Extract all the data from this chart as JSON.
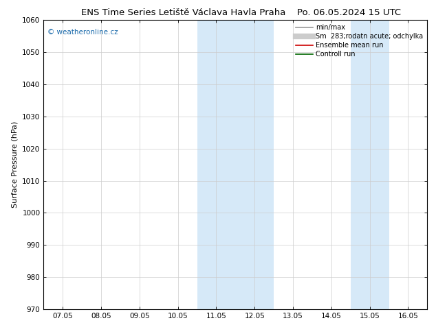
{
  "title_left": "ENS Time Series Letiště Václava Havla Praha",
  "title_right": "Po. 06.05.2024 15 UTC",
  "ylabel": "Surface Pressure (hPa)",
  "ylim": [
    970,
    1060
  ],
  "yticks": [
    970,
    980,
    990,
    1000,
    1010,
    1020,
    1030,
    1040,
    1050,
    1060
  ],
  "xtick_labels": [
    "07.05",
    "08.05",
    "09.05",
    "10.05",
    "11.05",
    "12.05",
    "13.05",
    "14.05",
    "15.05",
    "16.05"
  ],
  "shaded_regions": [
    {
      "xmin": 4.0,
      "xmax": 6.0,
      "color": "#d6e9f8"
    },
    {
      "xmin": 8.0,
      "xmax": 9.0,
      "color": "#d6e9f8"
    }
  ],
  "watermark_text": "© weatheronline.cz",
  "watermark_color": "#1a6aab",
  "legend_entries": [
    {
      "label": "min/max",
      "color": "#999999",
      "lw": 1.2
    },
    {
      "label": "Sm  283;rodatn acute; odchylka",
      "color": "#cccccc",
      "lw": 6
    },
    {
      "label": "Ensemble mean run",
      "color": "#cc0000",
      "lw": 1.2
    },
    {
      "label": "Controll run",
      "color": "#006600",
      "lw": 1.2
    }
  ],
  "background_color": "#ffffff",
  "grid_color": "#cccccc",
  "title_fontsize": 9.5,
  "ylabel_fontsize": 8,
  "tick_fontsize": 7.5,
  "legend_fontsize": 7,
  "watermark_fontsize": 7.5
}
